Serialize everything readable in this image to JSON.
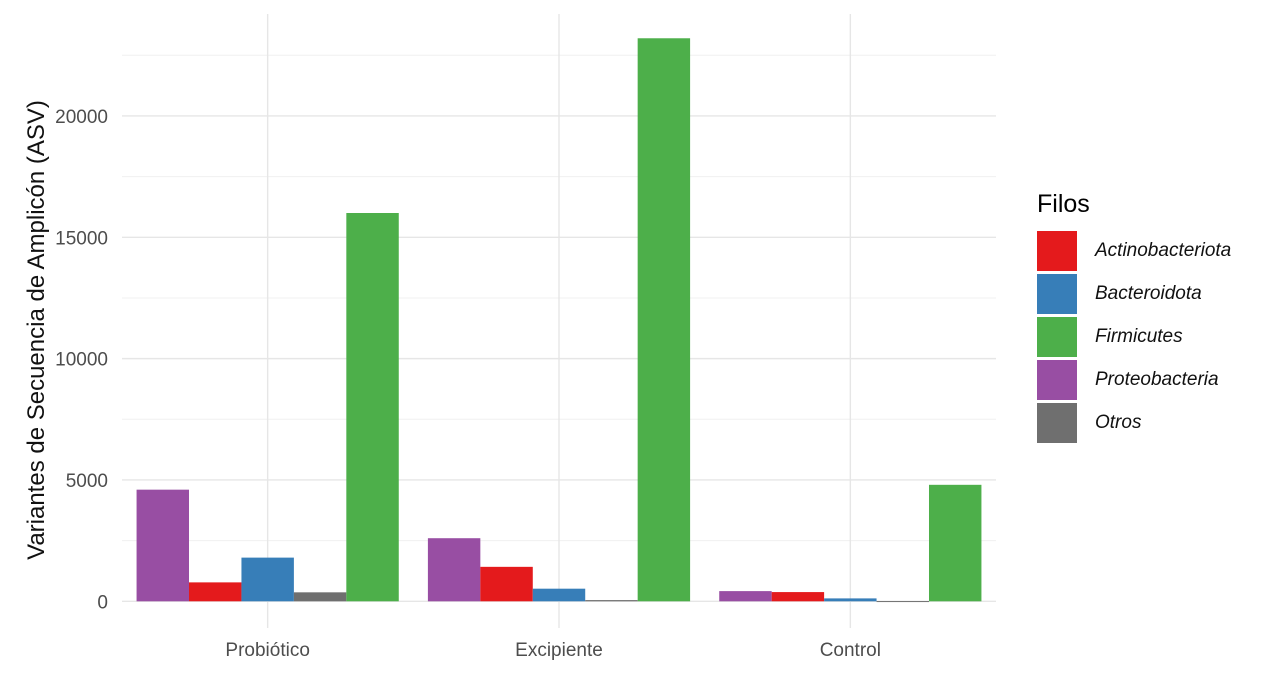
{
  "chart_data": {
    "type": "bar",
    "ylabel": "Variantes de Secuencia de Amplicón (ASV)",
    "xlabel": "",
    "categories": [
      "Probiótico",
      "Excipiente",
      "Control"
    ],
    "ylim": [
      -1100,
      24200
    ],
    "yticks": [
      0,
      5000,
      10000,
      15000,
      20000
    ],
    "grid": true,
    "legend_position": "right",
    "legend_title": "Filos",
    "legend_entries": [
      {
        "name": "Actinobacteriota",
        "color": "#E41A1C"
      },
      {
        "name": "Bacteroidota",
        "color": "#377EB8"
      },
      {
        "name": "Firmicutes",
        "color": "#4DAF4A"
      },
      {
        "name": "Proteobacteria",
        "color": "#984EA3"
      },
      {
        "name": "Otros",
        "color": "#6F6F6F"
      }
    ],
    "bar_order": [
      "Proteobacteria",
      "Actinobacteriota",
      "Bacteroidota",
      "Otros",
      "Firmicutes"
    ],
    "series": [
      {
        "name": "Proteobacteria",
        "color": "#984EA3",
        "values": [
          4600,
          2600,
          420
        ]
      },
      {
        "name": "Actinobacteriota",
        "color": "#E41A1C",
        "values": [
          780,
          1420,
          380
        ]
      },
      {
        "name": "Bacteroidota",
        "color": "#377EB8",
        "values": [
          1800,
          520,
          120
        ]
      },
      {
        "name": "Otros",
        "color": "#6F6F6F",
        "values": [
          370,
          50,
          10
        ]
      },
      {
        "name": "Firmicutes",
        "color": "#4DAF4A",
        "values": [
          16000,
          23200,
          4800
        ]
      }
    ]
  }
}
